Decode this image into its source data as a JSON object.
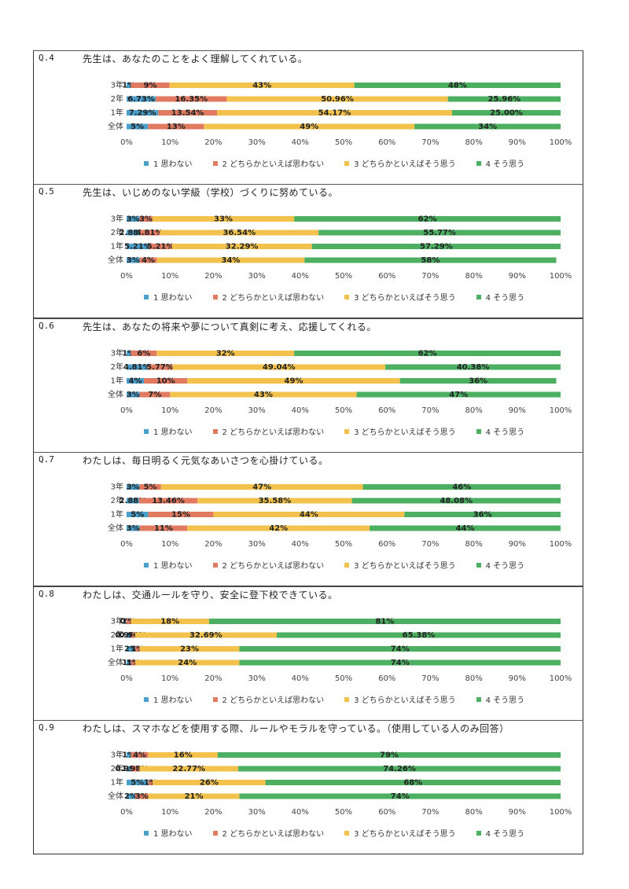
{
  "colors": [
    "#4a9fcb",
    "#e07b62",
    "#f2c24c",
    "#4caf62"
  ],
  "legend": [
    "1 思わない",
    "2 どちらかといえば思わない",
    "3 どちらかといえばそう思う",
    "4 そう思う"
  ],
  "ticks": [
    "0%",
    "10%",
    "20%",
    "30%",
    "40%",
    "50%",
    "60%",
    "70%",
    "80%",
    "90%",
    "100%"
  ],
  "chart_data": [
    {
      "type": "bar",
      "stacked": true,
      "orientation": "horizontal",
      "qnum": "Q.4",
      "title": "先生は、あなたのことをよく理解してくれている。",
      "categories": [
        "3年",
        "2年",
        "1年",
        "全体"
      ],
      "series": [
        {
          "name": "1 思わない",
          "values": [
            1,
            6.73,
            7.29,
            5
          ],
          "labels": [
            "1%",
            "6.73%",
            "7.29%",
            "5%"
          ]
        },
        {
          "name": "2 どちらかといえば思わない",
          "values": [
            9,
            16.35,
            13.54,
            13
          ],
          "labels": [
            "9%",
            "16.35%",
            "13.54%",
            "13%"
          ]
        },
        {
          "name": "3 どちらかといえばそう思う",
          "values": [
            43,
            50.96,
            54.17,
            49
          ],
          "labels": [
            "43%",
            "50.96%",
            "54.17%",
            "49%"
          ]
        },
        {
          "name": "4 そう思う",
          "values": [
            48,
            25.96,
            25.0,
            34
          ],
          "labels": [
            "48%",
            "25.96%",
            "25.00%",
            "34%"
          ]
        }
      ],
      "xlim": [
        0,
        100
      ]
    },
    {
      "type": "bar",
      "stacked": true,
      "orientation": "horizontal",
      "qnum": "Q.5",
      "title": "先生は、いじめのない学級（学校）づくりに努めている。",
      "categories": [
        "3年",
        "2年",
        "1年",
        "全体"
      ],
      "series": [
        {
          "name": "1 思わない",
          "values": [
            3,
            2.88,
            5.21,
            3
          ],
          "labels": [
            "3%",
            "2.88%",
            "5.21%",
            "3%"
          ]
        },
        {
          "name": "2 どちらかといえば思わない",
          "values": [
            3,
            4.81,
            5.21,
            4
          ],
          "labels": [
            "3%",
            "4.81%",
            "5.21%",
            "4%"
          ]
        },
        {
          "name": "3 どちらかといえばそう思う",
          "values": [
            33,
            36.54,
            32.29,
            34
          ],
          "labels": [
            "33%",
            "36.54%",
            "32.29%",
            "34%"
          ]
        },
        {
          "name": "4 そう思う",
          "values": [
            62,
            55.77,
            57.29,
            58
          ],
          "labels": [
            "62%",
            "55.77%",
            "57.29%",
            "58%"
          ]
        }
      ],
      "xlim": [
        0,
        100
      ]
    },
    {
      "type": "bar",
      "stacked": true,
      "orientation": "horizontal",
      "qnum": "Q.6",
      "title": "先生は、あなたの将来や夢について真剣に考え、応援してくれる。",
      "categories": [
        "3年",
        "2年",
        "1年",
        "全体"
      ],
      "series": [
        {
          "name": "1 思わない",
          "values": [
            1,
            4.81,
            4,
            3
          ],
          "labels": [
            "1%",
            "4.81%",
            "4%",
            "3%"
          ]
        },
        {
          "name": "2 どちらかといえば思わない",
          "values": [
            6,
            5.77,
            10,
            7
          ],
          "labels": [
            "6%",
            "5.77%",
            "10%",
            "7%"
          ]
        },
        {
          "name": "3 どちらかといえばそう思う",
          "values": [
            32,
            49.04,
            49,
            43
          ],
          "labels": [
            "32%",
            "49.04%",
            "49%",
            "43%"
          ]
        },
        {
          "name": "4 そう思う",
          "values": [
            62,
            40.38,
            36,
            47
          ],
          "labels": [
            "62%",
            "40.38%",
            "36%",
            "47%"
          ]
        }
      ],
      "xlim": [
        0,
        100
      ]
    },
    {
      "type": "bar",
      "stacked": true,
      "orientation": "horizontal",
      "qnum": "Q.7",
      "title": "わたしは、毎日明るく元気なあいさつを心掛けている。",
      "categories": [
        "3年",
        "2年",
        "1年",
        "全体"
      ],
      "series": [
        {
          "name": "1 思わない",
          "values": [
            3,
            2.88,
            5,
            3
          ],
          "labels": [
            "3%",
            "2.88%",
            "5%",
            "3%"
          ]
        },
        {
          "name": "2 どちらかといえば思わない",
          "values": [
            5,
            13.46,
            15,
            11
          ],
          "labels": [
            "5%",
            "13.46%",
            "15%",
            "11%"
          ]
        },
        {
          "name": "3 どちらかといえばそう思う",
          "values": [
            47,
            35.58,
            44,
            42
          ],
          "labels": [
            "47%",
            "35.58%",
            "44%",
            "42%"
          ]
        },
        {
          "name": "4 そう思う",
          "values": [
            46,
            48.08,
            36,
            44
          ],
          "labels": [
            "46%",
            "48.08%",
            "36%",
            "44%"
          ]
        }
      ],
      "xlim": [
        0,
        100
      ]
    },
    {
      "type": "bar",
      "stacked": true,
      "orientation": "horizontal",
      "qnum": "Q.8",
      "title": "わたしは、交通ルールを守り、安全に登下校できている。",
      "categories": [
        "3年",
        "2年",
        "1年",
        "全体"
      ],
      "series": [
        {
          "name": "1 思わない",
          "values": [
            0,
            0.96,
            2,
            1
          ],
          "labels": [
            "0%",
            "0.96%",
            "2%",
            "1%"
          ]
        },
        {
          "name": "2 どちらかといえば思わない",
          "values": [
            1,
            0.96,
            1,
            1
          ],
          "labels": [
            "1%",
            "0.96%",
            "1%",
            "1%"
          ]
        },
        {
          "name": "3 どちらかといえばそう思う",
          "values": [
            18,
            32.69,
            23,
            24
          ],
          "labels": [
            "18%",
            "32.69%",
            "23%",
            "24%"
          ]
        },
        {
          "name": "4 そう思う",
          "values": [
            81,
            65.38,
            74,
            74
          ],
          "labels": [
            "81%",
            "65.38%",
            "74%",
            "74%"
          ]
        }
      ],
      "xlim": [
        0,
        100
      ]
    },
    {
      "type": "bar",
      "stacked": true,
      "orientation": "horizontal",
      "qnum": "Q.9",
      "title": "わたしは、スマホなどを使用する際、ルールやモラルを守っている。（使用している人のみ回答）",
      "categories": [
        "3年",
        "2年",
        "1年",
        "全体"
      ],
      "series": [
        {
          "name": "1 思わない",
          "values": [
            1,
            0.99,
            5,
            2
          ],
          "labels": [
            "1%",
            "0.99%",
            "5%",
            "2%"
          ]
        },
        {
          "name": "2 どちらかといえば思わない",
          "values": [
            4,
            1.98,
            1,
            3
          ],
          "labels": [
            "4%",
            "1.98%",
            "1%",
            "3%"
          ]
        },
        {
          "name": "3 どちらかといえばそう思う",
          "values": [
            16,
            22.77,
            26,
            21
          ],
          "labels": [
            "16%",
            "22.77%",
            "26%",
            "21%"
          ]
        },
        {
          "name": "4 そう思う",
          "values": [
            79,
            74.26,
            68,
            74
          ],
          "labels": [
            "79%",
            "74.26%",
            "68%",
            "74%"
          ]
        }
      ],
      "xlim": [
        0,
        100
      ]
    }
  ]
}
